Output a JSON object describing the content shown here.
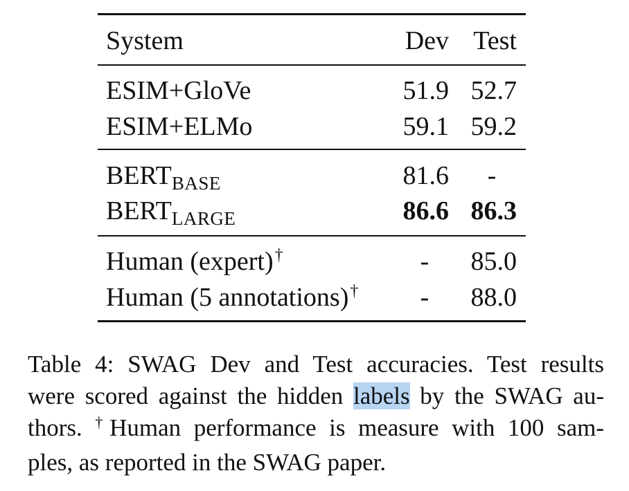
{
  "table": {
    "headers": {
      "system": "System",
      "dev": "Dev",
      "test": "Test"
    },
    "groups": [
      {
        "rows": [
          {
            "system": "ESIM+GloVe",
            "dev": "51.9",
            "test": "52.7"
          },
          {
            "system": "ESIM+ELMo",
            "dev": "59.1",
            "test": "59.2"
          }
        ]
      },
      {
        "rows": [
          {
            "system_main": "BERT",
            "system_sub": "BASE",
            "dev": "81.6",
            "test": "-"
          },
          {
            "system_main": "BERT",
            "system_sub": "LARGE",
            "dev": "86.6",
            "test": "86.3",
            "bold": true
          }
        ]
      },
      {
        "rows": [
          {
            "system": "Human (expert)",
            "dagger": "†",
            "dev": "-",
            "test": "85.0"
          },
          {
            "system": "Human (5 annotations)",
            "dagger": "†",
            "dev": "-",
            "test": "88.0"
          }
        ]
      }
    ]
  },
  "caption": {
    "line1": "Table 4: SWAG Dev and Test accuracies. Test results",
    "line2_before": "were scored against the hidden ",
    "line2_highlight": "labels",
    "line2_after": " by the SWAG au-",
    "line3_before": "thors. ",
    "line3_dagger": "†",
    "line3_after": "Human performance is measure with 100 sam-",
    "line4": "ples, as reported in the SWAG paper."
  },
  "colors": {
    "text": "#111111",
    "highlight": "#b7d4f3",
    "background": "#ffffff"
  }
}
